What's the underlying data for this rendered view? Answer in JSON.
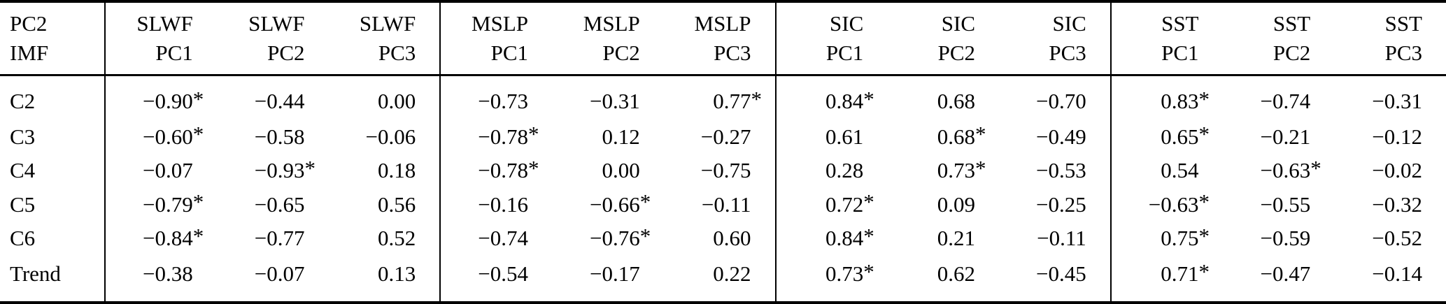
{
  "table": {
    "significance_marker": "*",
    "header": {
      "corner_top": "PC2",
      "corner_bottom": "IMF",
      "groups": [
        {
          "label": "SLWF",
          "cols": [
            "PC1",
            "PC2",
            "PC3"
          ]
        },
        {
          "label": "MSLP",
          "cols": [
            "PC1",
            "PC2",
            "PC3"
          ]
        },
        {
          "label": "SIC",
          "cols": [
            "PC1",
            "PC2",
            "PC3"
          ]
        },
        {
          "label": "SST",
          "cols": [
            "PC1",
            "PC2",
            "PC3"
          ]
        }
      ]
    },
    "rows": [
      {
        "label": "C2",
        "values": [
          "−0.90*",
          "−0.44",
          "0.00",
          "−0.73",
          "−0.31",
          "0.77*",
          "0.84*",
          "0.68",
          "−0.70",
          "0.83*",
          "−0.74",
          "−0.31"
        ]
      },
      {
        "label": "C3",
        "values": [
          "−0.60*",
          "−0.58",
          "−0.06",
          "−0.78*",
          "0.12",
          "−0.27",
          "0.61",
          "0.68*",
          "−0.49",
          "0.65*",
          "−0.21",
          "−0.12"
        ]
      },
      {
        "label": "C4",
        "values": [
          "−0.07",
          "−0.93*",
          "0.18",
          "−0.78*",
          "0.00",
          "−0.75",
          "0.28",
          "0.73*",
          "−0.53",
          "0.54",
          "−0.63*",
          "−0.02"
        ]
      },
      {
        "label": "C5",
        "values": [
          "−0.79*",
          "−0.65",
          "0.56",
          "−0.16",
          "−0.66*",
          "−0.11",
          "0.72*",
          "0.09",
          "−0.25",
          "−0.63*",
          "−0.55",
          "−0.32"
        ]
      },
      {
        "label": "C6",
        "values": [
          "−0.84*",
          "−0.77",
          "0.52",
          "−0.74",
          "−0.76*",
          "0.60",
          "0.84*",
          "0.21",
          "−0.11",
          "0.75*",
          "−0.59",
          "−0.52"
        ]
      },
      {
        "label": "Trend",
        "values": [
          "−0.38",
          "−0.07",
          "0.13",
          "−0.54",
          "−0.17",
          "0.22",
          "0.73*",
          "0.62",
          "−0.45",
          "0.71*",
          "−0.47",
          "−0.14"
        ]
      }
    ]
  }
}
